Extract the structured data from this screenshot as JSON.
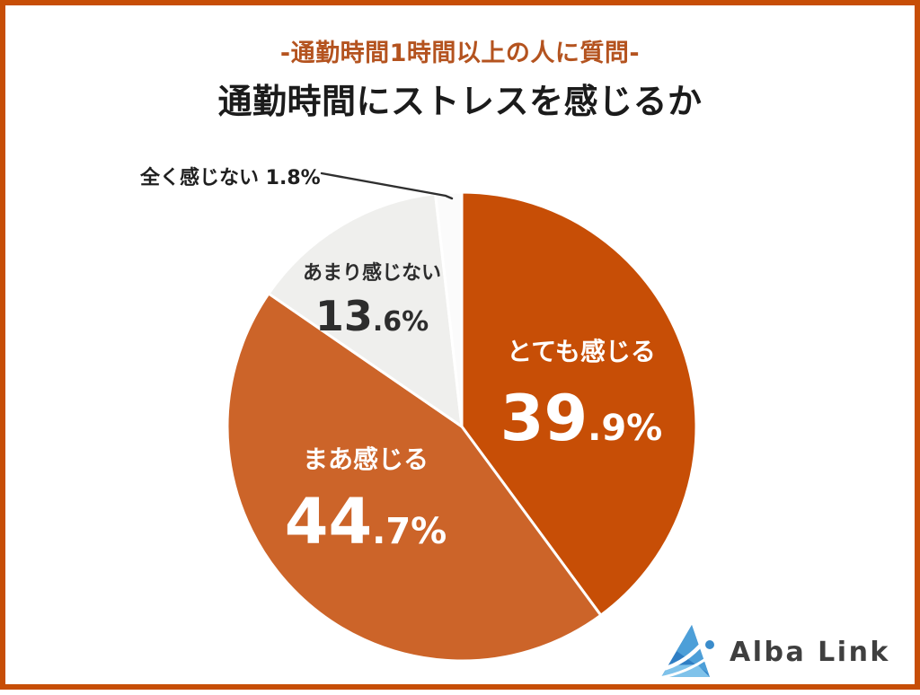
{
  "page": {
    "background": "#FFFFFF",
    "border_color": "#C74E06"
  },
  "header": {
    "subtitle": "-通勤時間1時間以上の人に質問-",
    "subtitle_color": "#B4531F",
    "title": "通勤時間にストレスを感じるか",
    "title_color": "#1B1B1B"
  },
  "chart_data": {
    "type": "pie",
    "title": "通勤時間にストレスを感じるか",
    "subtitle": "-通勤時間1時間以上の人に質問-",
    "direction": "clockwise",
    "start_angle_deg": 0,
    "gap_color": "#FFFFFF",
    "segments": [
      {
        "label": "とても感じる",
        "value": 39.9,
        "pct_int": "39",
        "pct_frac": ".9%",
        "color": "#C74E06",
        "text_color": "#FFFFFF"
      },
      {
        "label": "まあ感じる",
        "value": 44.7,
        "pct_int": "44",
        "pct_frac": ".7%",
        "color": "#CC6429",
        "text_color": "#FFFFFF"
      },
      {
        "label": "あまり感じない",
        "value": 13.6,
        "pct_int": "13",
        "pct_frac": ".6%",
        "color": "#EFEFED",
        "text_color": "#2D2D2D"
      },
      {
        "label": "全く感じない",
        "value": 1.8,
        "pct_int": "1",
        "pct_frac": ".8%",
        "color": "#FBFBFB",
        "text_color": "#1F1F1F"
      }
    ],
    "callout": {
      "text": "全く感じない 1.8%"
    }
  },
  "logo": {
    "text": "Alba Link",
    "text_color": "#3F3F3F",
    "icon_colors": {
      "dark_blue": "#2F7EC4",
      "mid_blue": "#4D9FD8",
      "light_blue": "#7FC2EA"
    }
  }
}
